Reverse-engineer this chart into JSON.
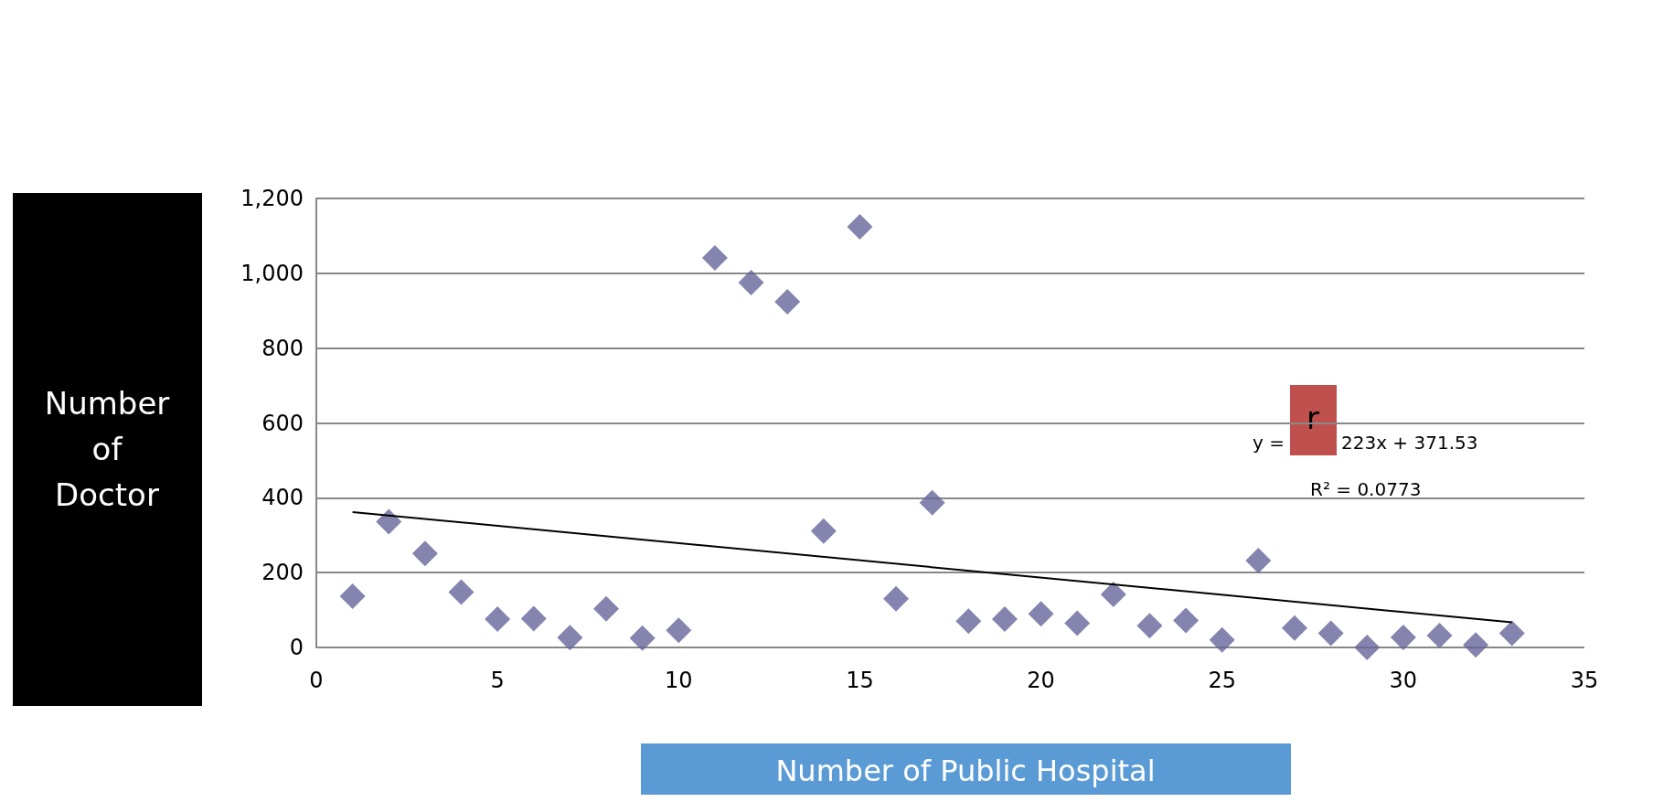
{
  "chart_data": {
    "type": "scatter",
    "xlabel": "Number of Public Hospital",
    "ylabel": "Number of Doctor",
    "x": [
      1,
      2,
      3,
      4,
      5,
      6,
      7,
      8,
      9,
      10,
      11,
      12,
      13,
      14,
      15,
      16,
      17,
      18,
      19,
      20,
      21,
      22,
      23,
      24,
      25,
      26,
      27,
      28,
      29,
      30,
      31,
      32,
      33
    ],
    "series": [
      {
        "color": "#65659b",
        "marker": "diamond",
        "values": [
          137,
          336,
          251,
          148,
          76,
          77,
          26,
          103,
          25,
          46,
          1041,
          975,
          924,
          311,
          1124,
          130,
          387,
          70,
          76,
          90,
          65,
          142,
          58,
          72,
          20,
          232,
          52,
          38,
          0,
          27,
          32,
          7,
          38
        ]
      },
      {
        "type": "line",
        "marker": "none",
        "color": "#000000",
        "x": [
          1,
          33
        ],
        "values": [
          362,
          67
        ]
      }
    ],
    "xlim": [
      0,
      35
    ],
    "xticks": [
      0,
      5,
      10,
      15,
      20,
      25,
      30,
      35
    ],
    "ylim": [
      0,
      1200
    ],
    "yticks": [
      0,
      200,
      400,
      600,
      800,
      {
        "value": 1000,
        "label": "1,000"
      },
      {
        "value": 1200,
        "label": "1,200"
      }
    ],
    "grid": "y",
    "annotations": [
      "y =",
      "r",
      "223x + 371.53",
      "R² = 0.0773"
    ]
  }
}
